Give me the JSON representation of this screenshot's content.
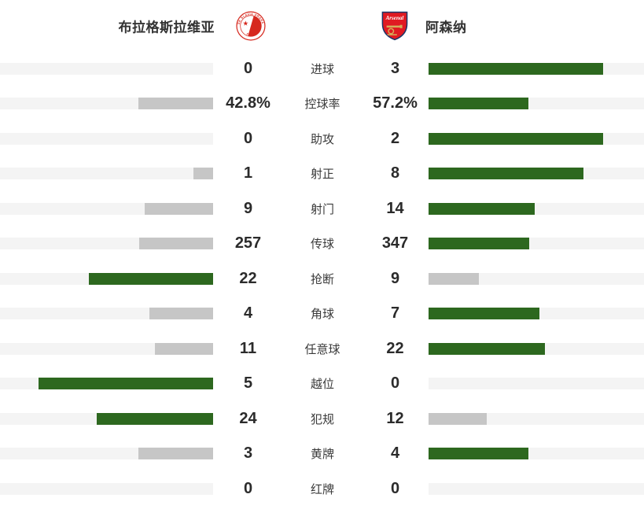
{
  "header": {
    "home_team": "布拉格斯拉维亚",
    "away_team": "阿森纳",
    "home_logo": "slavia-prague-crest",
    "away_logo": "arsenal-crest"
  },
  "chart_data": {
    "type": "bar",
    "orientation": "horizontal-mirrored",
    "categories": [
      "进球",
      "控球率",
      "助攻",
      "射正",
      "射门",
      "传球",
      "抢断",
      "角球",
      "任意球",
      "越位",
      "犯规",
      "黄牌",
      "红牌"
    ],
    "series": [
      {
        "name": "布拉格斯拉维亚",
        "side": "left",
        "display": [
          "0",
          "42.8%",
          "0",
          "1",
          "9",
          "257",
          "22",
          "4",
          "11",
          "5",
          "24",
          "3",
          "0"
        ],
        "values": [
          0,
          42.8,
          0,
          1,
          9,
          257,
          22,
          4,
          11,
          5,
          24,
          3,
          0
        ]
      },
      {
        "name": "阿森纳",
        "side": "right",
        "display": [
          "3",
          "57.2%",
          "2",
          "8",
          "14",
          "347",
          "9",
          "7",
          "22",
          "0",
          "12",
          "4",
          "0"
        ],
        "values": [
          3,
          57.2,
          2,
          8,
          14,
          347,
          9,
          7,
          22,
          0,
          12,
          4,
          0
        ]
      }
    ],
    "bar_scale": "bar length proportional to value / (home+away), max 222px",
    "highlight_rule": "higher value gets green bar, lower gets gray bar",
    "colors": {
      "win": "#2d681f",
      "lose": "#c6c6c6",
      "track": "#f4f4f4",
      "value_text": "#2b2b2b",
      "label_text": "#3a3a3a",
      "crest_red": "#d6281e",
      "arsenal_red": "#e01a22",
      "arsenal_navy": "#1a3668",
      "arsenal_gold": "#d4af5a"
    }
  }
}
